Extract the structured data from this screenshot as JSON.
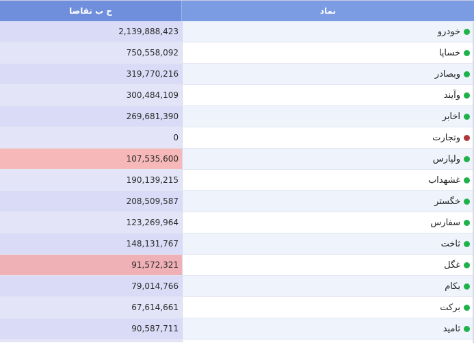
{
  "header": {
    "demand_label": "ح ب تقاضا",
    "symbol_label": "نماد"
  },
  "colors": {
    "header_bg": "#7a9ae0",
    "status_active": "#1fb24a",
    "status_halted": "#b0363a",
    "highlight_neg": "#f6b8b8"
  },
  "rows": [
    {
      "symbol": "خودرو",
      "demand": "2,139,888,423",
      "status": "active"
    },
    {
      "symbol": "خساپا",
      "demand": "750,558,092",
      "status": "active"
    },
    {
      "symbol": "وبصادر",
      "demand": "319,770,216",
      "status": "active"
    },
    {
      "symbol": "وآیند",
      "demand": "300,484,109",
      "status": "active"
    },
    {
      "symbol": "اخابر",
      "demand": "269,681,390",
      "status": "active"
    },
    {
      "symbol": "وتجارت",
      "demand": "0",
      "status": "halted"
    },
    {
      "symbol": "ولپارس",
      "demand": "107,535,600",
      "status": "active"
    },
    {
      "symbol": "غشهداب",
      "demand": "190,139,215",
      "status": "active"
    },
    {
      "symbol": "خگستر",
      "demand": "208,509,587",
      "status": "active"
    },
    {
      "symbol": "سفارس",
      "demand": "123,269,964",
      "status": "active"
    },
    {
      "symbol": "ثاخت",
      "demand": "148,131,767",
      "status": "active"
    },
    {
      "symbol": "غگل",
      "demand": "91,572,321",
      "status": "active"
    },
    {
      "symbol": "بکام",
      "demand": "79,014,766",
      "status": "active"
    },
    {
      "symbol": "برکت",
      "demand": "67,614,661",
      "status": "active"
    },
    {
      "symbol": "ثامید",
      "demand": "90,587,711",
      "status": "active"
    }
  ]
}
